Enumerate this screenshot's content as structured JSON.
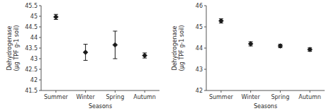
{
  "chart_data": [
    {
      "type": "scatter",
      "marker": "diamond",
      "color": "#1a1a1a",
      "categories": [
        "Summer",
        "Winter",
        "Spring",
        "Autumn"
      ],
      "values": [
        44.97,
        43.3,
        43.65,
        43.15
      ],
      "errors": [
        0.12,
        0.38,
        0.65,
        0.12
      ],
      "ylim": [
        41.5,
        45.5
      ],
      "yticks": [
        41.5,
        42,
        42.5,
        43,
        43.5,
        44,
        44.5,
        45,
        45.5
      ],
      "ylabel": "Dehydrogenase\n(µg TPF g-1 soil)",
      "xlabel": "Seasons"
    },
    {
      "type": "scatter",
      "marker": "diamond",
      "color": "#1a1a1a",
      "categories": [
        "Summer",
        "Winter",
        "Spring",
        "Autumn"
      ],
      "values": [
        45.28,
        44.2,
        44.1,
        43.93
      ],
      "errors": [
        0.1,
        0.1,
        0.08,
        0.08
      ],
      "ylim": [
        42,
        46
      ],
      "yticks": [
        42,
        43,
        44,
        45,
        46
      ],
      "ylabel": "Dehydrogenase\n(µg TPF g-1 soil)",
      "xlabel": "Seasons"
    }
  ]
}
